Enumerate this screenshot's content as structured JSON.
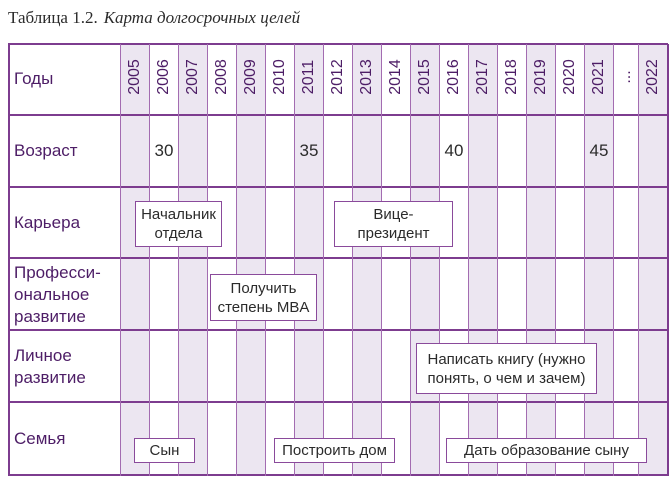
{
  "caption": {
    "table_number": "Таблица 1.2.",
    "title": "Карта долгосрочных целей"
  },
  "rows": {
    "years": "Годы",
    "age": "Возраст",
    "career": "Карьера",
    "professional": "Професси-\nональное\nразвитие",
    "personal": "Личное\nразвитие",
    "family": "Семья"
  },
  "years": [
    "2005",
    "2006",
    "2007",
    "2008",
    "2009",
    "2010",
    "2011",
    "2012",
    "2013",
    "2014",
    "2015",
    "2016",
    "2017",
    "2018",
    "2019",
    "2020",
    "2021",
    "...",
    "2022"
  ],
  "ages": {
    "y2006": "30",
    "y2011": "35",
    "y2016": "40",
    "y2021": "45"
  },
  "events": {
    "career_head": "Начальник\nотдела",
    "career_vp": "Вице-\nпрезидент",
    "mba": "Получить\nстепень MBA",
    "book": "Написать книгу (нужно\nпонять, о чем и зачем)",
    "son": "Сын",
    "house": "Построить дом",
    "education": "Дать образование сыну"
  },
  "colors": {
    "line": "#7d3c8f",
    "stripe": "#ece6f1",
    "label": "#4d1d66"
  }
}
